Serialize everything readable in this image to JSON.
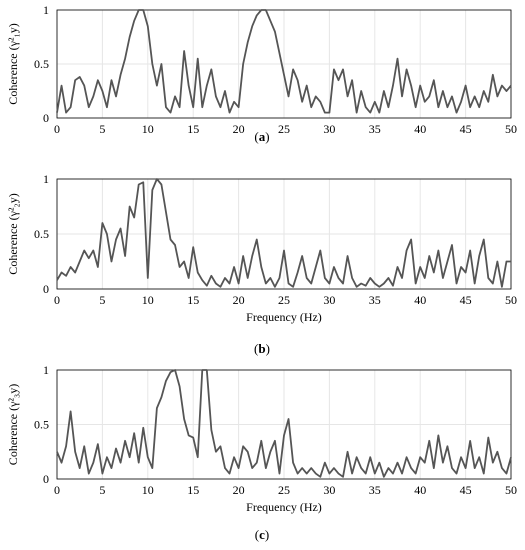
{
  "style": {
    "line_color": "#555555"
  },
  "chart_data": [
    {
      "type": "line",
      "caption_letter": "a",
      "ylabel": "Coherence (γ²₁y)",
      "xlabel": "",
      "xlim": [
        0,
        50
      ],
      "ylim": [
        0,
        1
      ],
      "xticks": [
        "0",
        "5",
        "10",
        "15",
        "20",
        "25",
        "30",
        "35",
        "40",
        "45",
        "50"
      ],
      "yticks": [
        "0",
        "0.5",
        "1"
      ],
      "grid": true,
      "series": [
        {
          "x": [
            0,
            0.5,
            1,
            1.5,
            2,
            2.5,
            3,
            3.5,
            4,
            4.5,
            5,
            5.5,
            6,
            6.5,
            7,
            7.5,
            8,
            8.5,
            9,
            9.5,
            10,
            10.5,
            11,
            11.5,
            12,
            12.5,
            13,
            13.5,
            14,
            14.5,
            15,
            15.5,
            16,
            16.5,
            17,
            17.5,
            18,
            18.5,
            19,
            19.5,
            20,
            20.5,
            21,
            21.5,
            22,
            22.5,
            23,
            23.5,
            24,
            24.5,
            25,
            25.5,
            26,
            26.5,
            27,
            27.5,
            28,
            28.5,
            29,
            29.5,
            30,
            30.5,
            31,
            31.5,
            32,
            32.5,
            33,
            33.5,
            34,
            34.5,
            35,
            35.5,
            36,
            36.5,
            37,
            37.5,
            38,
            38.5,
            39,
            39.5,
            40,
            40.5,
            41,
            41.5,
            42,
            42.5,
            43,
            43.5,
            44,
            44.5,
            45,
            45.5,
            46,
            46.5,
            47,
            47.5,
            48,
            48.5,
            49,
            49.5,
            50
          ],
          "y": [
            0.05,
            0.3,
            0.05,
            0.1,
            0.35,
            0.38,
            0.3,
            0.1,
            0.2,
            0.35,
            0.25,
            0.1,
            0.35,
            0.2,
            0.4,
            0.55,
            0.75,
            0.9,
            1.0,
            1.0,
            0.85,
            0.5,
            0.3,
            0.5,
            0.1,
            0.05,
            0.2,
            0.1,
            0.62,
            0.3,
            0.1,
            0.55,
            0.1,
            0.3,
            0.45,
            0.2,
            0.1,
            0.25,
            0.05,
            0.15,
            0.1,
            0.5,
            0.7,
            0.85,
            0.95,
            1.0,
            1.0,
            0.9,
            0.8,
            0.6,
            0.4,
            0.2,
            0.45,
            0.35,
            0.15,
            0.3,
            0.1,
            0.2,
            0.15,
            0.05,
            0.05,
            0.45,
            0.35,
            0.45,
            0.2,
            0.35,
            0.05,
            0.25,
            0.1,
            0.05,
            0.15,
            0.05,
            0.25,
            0.1,
            0.3,
            0.55,
            0.2,
            0.45,
            0.3,
            0.1,
            0.3,
            0.15,
            0.2,
            0.35,
            0.1,
            0.25,
            0.1,
            0.2,
            0.05,
            0.15,
            0.3,
            0.1,
            0.2,
            0.1,
            0.25,
            0.15,
            0.4,
            0.2,
            0.3,
            0.25,
            0.3
          ]
        }
      ]
    },
    {
      "type": "line",
      "caption_letter": "b",
      "ylabel": "Coherence (γ²₂y)",
      "xlabel": "Frequency (Hz)",
      "xlim": [
        0,
        50
      ],
      "ylim": [
        0,
        1
      ],
      "xticks": [
        "0",
        "5",
        "10",
        "15",
        "20",
        "25",
        "30",
        "35",
        "40",
        "45",
        "50"
      ],
      "yticks": [
        "0",
        "0.5",
        "1"
      ],
      "grid": true,
      "series": [
        {
          "x": [
            0,
            0.5,
            1,
            1.5,
            2,
            2.5,
            3,
            3.5,
            4,
            4.5,
            5,
            5.5,
            6,
            6.5,
            7,
            7.5,
            8,
            8.5,
            9,
            9.5,
            10,
            10.5,
            11,
            11.5,
            12,
            12.5,
            13,
            13.5,
            14,
            14.5,
            15,
            15.5,
            16,
            16.5,
            17,
            17.5,
            18,
            18.5,
            19,
            19.5,
            20,
            20.5,
            21,
            21.5,
            22,
            22.5,
            23,
            23.5,
            24,
            24.5,
            25,
            25.5,
            26,
            26.5,
            27,
            27.5,
            28,
            28.5,
            29,
            29.5,
            30,
            30.5,
            31,
            31.5,
            32,
            32.5,
            33,
            33.5,
            34,
            34.5,
            35,
            35.5,
            36,
            36.5,
            37,
            37.5,
            38,
            38.5,
            39,
            39.5,
            40,
            40.5,
            41,
            41.5,
            42,
            42.5,
            43,
            43.5,
            44,
            44.5,
            45,
            45.5,
            46,
            46.5,
            47,
            47.5,
            48,
            48.5,
            49,
            49.5,
            50
          ],
          "y": [
            0.08,
            0.15,
            0.12,
            0.2,
            0.15,
            0.25,
            0.35,
            0.28,
            0.35,
            0.2,
            0.6,
            0.5,
            0.25,
            0.45,
            0.55,
            0.3,
            0.75,
            0.65,
            0.95,
            0.97,
            0.1,
            0.9,
            1.0,
            0.95,
            0.7,
            0.45,
            0.4,
            0.2,
            0.25,
            0.1,
            0.38,
            0.15,
            0.08,
            0.03,
            0.12,
            0.05,
            0.02,
            0.1,
            0.05,
            0.2,
            0.05,
            0.3,
            0.1,
            0.3,
            0.45,
            0.2,
            0.05,
            0.1,
            0.02,
            0.1,
            0.35,
            0.05,
            0.02,
            0.15,
            0.3,
            0.1,
            0.05,
            0.2,
            0.35,
            0.1,
            0.05,
            0.2,
            0.1,
            0.05,
            0.3,
            0.1,
            0.02,
            0.05,
            0.03,
            0.1,
            0.05,
            0.02,
            0.05,
            0.1,
            0.03,
            0.2,
            0.1,
            0.35,
            0.45,
            0.05,
            0.2,
            0.1,
            0.3,
            0.15,
            0.35,
            0.1,
            0.25,
            0.4,
            0.05,
            0.2,
            0.15,
            0.35,
            0.05,
            0.3,
            0.45,
            0.1,
            0.05,
            0.25,
            0.02,
            0.25,
            0.25
          ]
        }
      ]
    },
    {
      "type": "line",
      "caption_letter": "c",
      "ylabel": "Coherence (γ²₃y)",
      "xlabel": "Frequency (Hz)",
      "xlim": [
        0,
        50
      ],
      "ylim": [
        0,
        1
      ],
      "xticks": [
        "0",
        "5",
        "10",
        "15",
        "20",
        "25",
        "30",
        "35",
        "40",
        "45",
        "50"
      ],
      "yticks": [
        "0",
        "0.5",
        "1"
      ],
      "grid": true,
      "series": [
        {
          "x": [
            0,
            0.5,
            1,
            1.5,
            2,
            2.5,
            3,
            3.5,
            4,
            4.5,
            5,
            5.5,
            6,
            6.5,
            7,
            7.5,
            8,
            8.5,
            9,
            9.5,
            10,
            10.5,
            11,
            11.5,
            12,
            12.5,
            13,
            13.5,
            14,
            14.5,
            15,
            15.5,
            16,
            16.5,
            17,
            17.5,
            18,
            18.5,
            19,
            19.5,
            20,
            20.5,
            21,
            21.5,
            22,
            22.5,
            23,
            23.5,
            24,
            24.5,
            25,
            25.5,
            26,
            26.5,
            27,
            27.5,
            28,
            28.5,
            29,
            29.5,
            30,
            30.5,
            31,
            31.5,
            32,
            32.5,
            33,
            33.5,
            34,
            34.5,
            35,
            35.5,
            36,
            36.5,
            37,
            37.5,
            38,
            38.5,
            39,
            39.5,
            40,
            40.5,
            41,
            41.5,
            42,
            42.5,
            43,
            43.5,
            44,
            44.5,
            45,
            45.5,
            46,
            46.5,
            47,
            47.5,
            48,
            48.5,
            49,
            49.5,
            50
          ],
          "y": [
            0.25,
            0.15,
            0.3,
            0.62,
            0.25,
            0.1,
            0.3,
            0.05,
            0.15,
            0.32,
            0.05,
            0.2,
            0.1,
            0.28,
            0.15,
            0.35,
            0.2,
            0.42,
            0.15,
            0.47,
            0.2,
            0.1,
            0.65,
            0.75,
            0.9,
            0.98,
            1.0,
            0.85,
            0.55,
            0.4,
            0.38,
            0.2,
            1.0,
            1.0,
            0.45,
            0.25,
            0.3,
            0.1,
            0.05,
            0.2,
            0.1,
            0.3,
            0.25,
            0.1,
            0.15,
            0.35,
            0.1,
            0.25,
            0.35,
            0.05,
            0.4,
            0.55,
            0.15,
            0.05,
            0.1,
            0.05,
            0.1,
            0.05,
            0.02,
            0.15,
            0.05,
            0.1,
            0.05,
            0.02,
            0.25,
            0.05,
            0.2,
            0.1,
            0.05,
            0.2,
            0.05,
            0.15,
            0.02,
            0.1,
            0.05,
            0.15,
            0.05,
            0.2,
            0.1,
            0.05,
            0.2,
            0.15,
            0.35,
            0.1,
            0.4,
            0.15,
            0.3,
            0.1,
            0.05,
            0.2,
            0.1,
            0.35,
            0.1,
            0.2,
            0.05,
            0.38,
            0.15,
            0.25,
            0.1,
            0.05,
            0.2
          ]
        }
      ]
    }
  ]
}
